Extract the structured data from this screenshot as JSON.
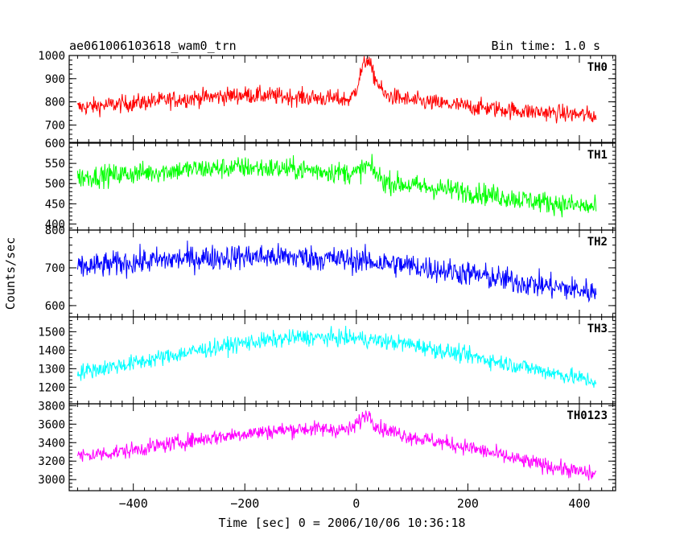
{
  "chart_data": {
    "type": "line",
    "title": "ae061006103618_wam0_trn",
    "subtitle": "Bin time: 1.0 s",
    "xlabel": "Time [sec] 0 = 2006/10/06 10:36:18",
    "ylabel": "Counts/sec",
    "xlim": [
      -515,
      465
    ],
    "x_ticks": [
      -400,
      -200,
      0,
      200,
      400
    ],
    "x_tick_labels": [
      "−400",
      "−200",
      "0",
      "200",
      "400"
    ],
    "grid": false,
    "sampling": {
      "x_start": -500,
      "x_end": 430,
      "step": 1
    },
    "series": [
      {
        "name": "TH0",
        "color": "#ff0000",
        "ylim": [
          625,
          1000
        ],
        "y_ticks": [
          700,
          800,
          900,
          1000
        ],
        "trend_x": [
          -500,
          -400,
          -300,
          -200,
          -100,
          -10,
          0,
          10,
          20,
          30,
          50,
          100,
          200,
          300,
          430
        ],
        "trend_y": [
          775,
          795,
          815,
          830,
          820,
          810,
          860,
          940,
          990,
          920,
          830,
          805,
          780,
          760,
          740
        ],
        "noise_amplitude": 38
      },
      {
        "name": "TH1",
        "color": "#00ff00",
        "ylim": [
          385,
          600
        ],
        "y_ticks": [
          400,
          450,
          500,
          550,
          600
        ],
        "trend_x": [
          -500,
          -400,
          -300,
          -200,
          -100,
          0,
          20,
          50,
          100,
          200,
          300,
          430
        ],
        "trend_y": [
          515,
          525,
          535,
          540,
          535,
          525,
          545,
          505,
          495,
          480,
          460,
          440
        ],
        "noise_amplitude": 27
      },
      {
        "name": "TH2",
        "color": "#0000ff",
        "ylim": [
          570,
          800
        ],
        "y_ticks": [
          600,
          700,
          800
        ],
        "trend_x": [
          -500,
          -400,
          -300,
          -200,
          -100,
          0,
          100,
          200,
          300,
          430
        ],
        "trend_y": [
          700,
          715,
          725,
          730,
          728,
          720,
          705,
          685,
          660,
          635
        ],
        "noise_amplitude": 34
      },
      {
        "name": "TH3",
        "color": "#00ffff",
        "ylim": [
          1110,
          1580
        ],
        "y_ticks": [
          1200,
          1300,
          1400,
          1500
        ],
        "trend_x": [
          -500,
          -400,
          -300,
          -200,
          -100,
          0,
          100,
          200,
          300,
          430
        ],
        "trend_y": [
          1280,
          1330,
          1390,
          1440,
          1470,
          1465,
          1430,
          1370,
          1310,
          1230
        ],
        "noise_amplitude": 45
      },
      {
        "name": "TH0123",
        "color": "#ff00ff",
        "ylim": [
          2880,
          3820
        ],
        "y_ticks": [
          3000,
          3200,
          3400,
          3600,
          3800
        ],
        "trend_x": [
          -500,
          -400,
          -300,
          -200,
          -100,
          -10,
          10,
          20,
          40,
          100,
          200,
          300,
          430
        ],
        "trend_y": [
          3250,
          3320,
          3420,
          3500,
          3550,
          3540,
          3660,
          3720,
          3560,
          3460,
          3350,
          3200,
          3050
        ],
        "noise_amplitude": 85
      }
    ]
  }
}
